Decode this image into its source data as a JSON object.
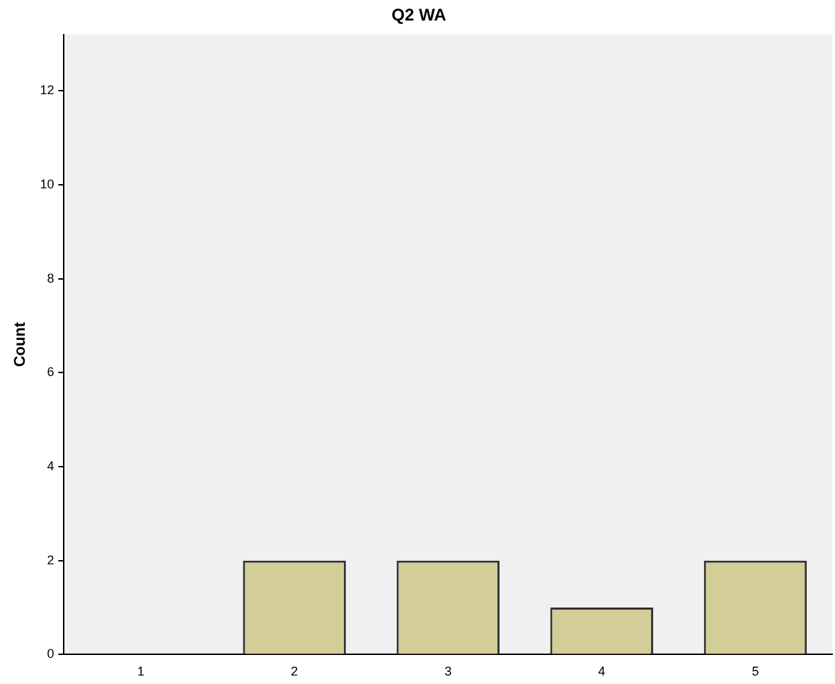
{
  "chart_data": {
    "type": "bar",
    "title": "Q2 WA",
    "ylabel": "Count",
    "categories": [
      "1",
      "2",
      "3",
      "4",
      "5"
    ],
    "values": [
      0,
      2,
      2,
      1,
      2
    ],
    "color": "#d3ce97",
    "ylim": [
      0,
      13.2
    ],
    "yticks": [
      0,
      2,
      4,
      6,
      8,
      10,
      12
    ],
    "grid": false,
    "legend": false
  }
}
